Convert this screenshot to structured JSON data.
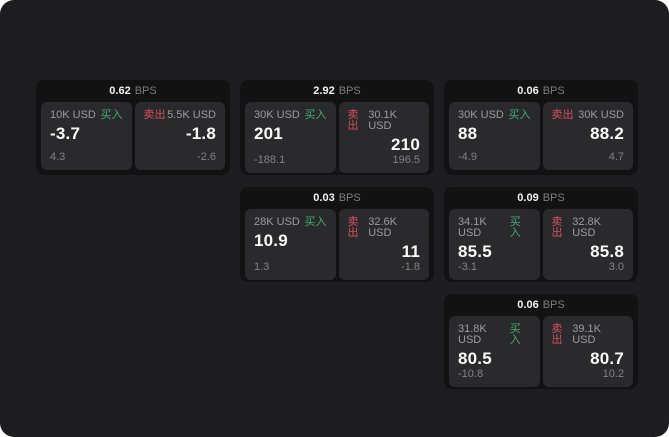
{
  "labels": {
    "bps_unit": "BPS",
    "buy": "买入",
    "sell": "卖出"
  },
  "colors": {
    "buy": "#3fae72",
    "sell": "#d4505f",
    "background": "#1d1d1f",
    "card": "#121212",
    "panel": "#2a2a2c"
  },
  "cards": [
    {
      "bps": "0.62",
      "row": 1,
      "col": 1,
      "buy": {
        "size": "10K USD",
        "price": "-3.7",
        "delta": "4.3"
      },
      "sell": {
        "size": "5.5K USD",
        "price": "-1.8",
        "delta": "-2.6"
      }
    },
    {
      "bps": "2.92",
      "row": 1,
      "col": 2,
      "buy": {
        "size": "30K USD",
        "price": "201",
        "delta": "-188.1"
      },
      "sell": {
        "size": "30.1K USD",
        "price": "210",
        "delta": "196.5"
      }
    },
    {
      "bps": "0.06",
      "row": 1,
      "col": 3,
      "buy": {
        "size": "30K USD",
        "price": "88",
        "delta": "-4.9"
      },
      "sell": {
        "size": "30K USD",
        "price": "88.2",
        "delta": "4.7"
      }
    },
    {
      "bps": "0.03",
      "row": 2,
      "col": 2,
      "buy": {
        "size": "28K USD",
        "price": "10.9",
        "delta": "1.3"
      },
      "sell": {
        "size": "32.6K USD",
        "price": "11",
        "delta": "-1.8"
      }
    },
    {
      "bps": "0.09",
      "row": 2,
      "col": 3,
      "buy": {
        "size": "34.1K USD",
        "price": "85.5",
        "delta": "-3.1"
      },
      "sell": {
        "size": "32.8K USD",
        "price": "85.8",
        "delta": "3.0"
      }
    },
    {
      "bps": "0.06",
      "row": 3,
      "col": 3,
      "buy": {
        "size": "31.8K USD",
        "price": "80.5",
        "delta": "-10.8"
      },
      "sell": {
        "size": "39.1K USD",
        "price": "80.7",
        "delta": "10.2"
      }
    }
  ]
}
